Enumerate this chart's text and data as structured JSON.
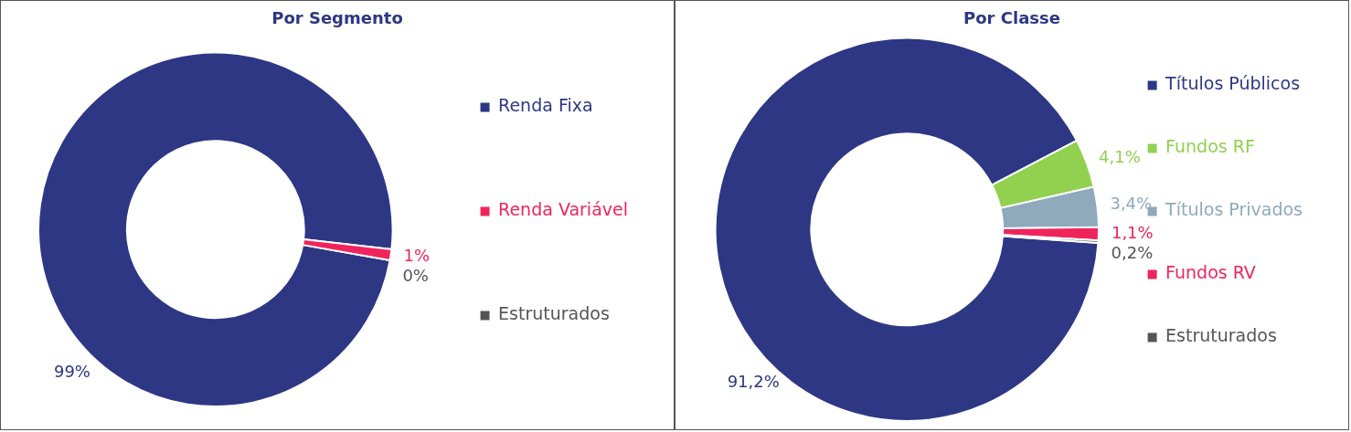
{
  "chart_data": [
    {
      "type": "donut",
      "title": "Por Segmento",
      "categories": [
        "Renda Fixa",
        "Renda Variável",
        "Estruturados"
      ],
      "values": [
        99,
        1,
        0
      ],
      "colors": [
        "#2e3784",
        "#f0245c",
        "#555555"
      ],
      "value_labels": [
        "99%",
        "1%",
        "0%"
      ],
      "legend": "right"
    },
    {
      "type": "donut",
      "title": "Por Classe",
      "categories": [
        "Títulos Públicos",
        "Fundos RF",
        "Títulos Privados",
        "Fundos RV",
        "Estruturados"
      ],
      "values": [
        91.2,
        4.1,
        3.4,
        1.1,
        0.2
      ],
      "colors": [
        "#2e3784",
        "#92d050",
        "#8eaabc",
        "#f0245c",
        "#555555"
      ],
      "value_labels": [
        "91,2%",
        "4,1%",
        "3,4%",
        "1,1%",
        "0,2%"
      ],
      "legend": "right"
    }
  ]
}
